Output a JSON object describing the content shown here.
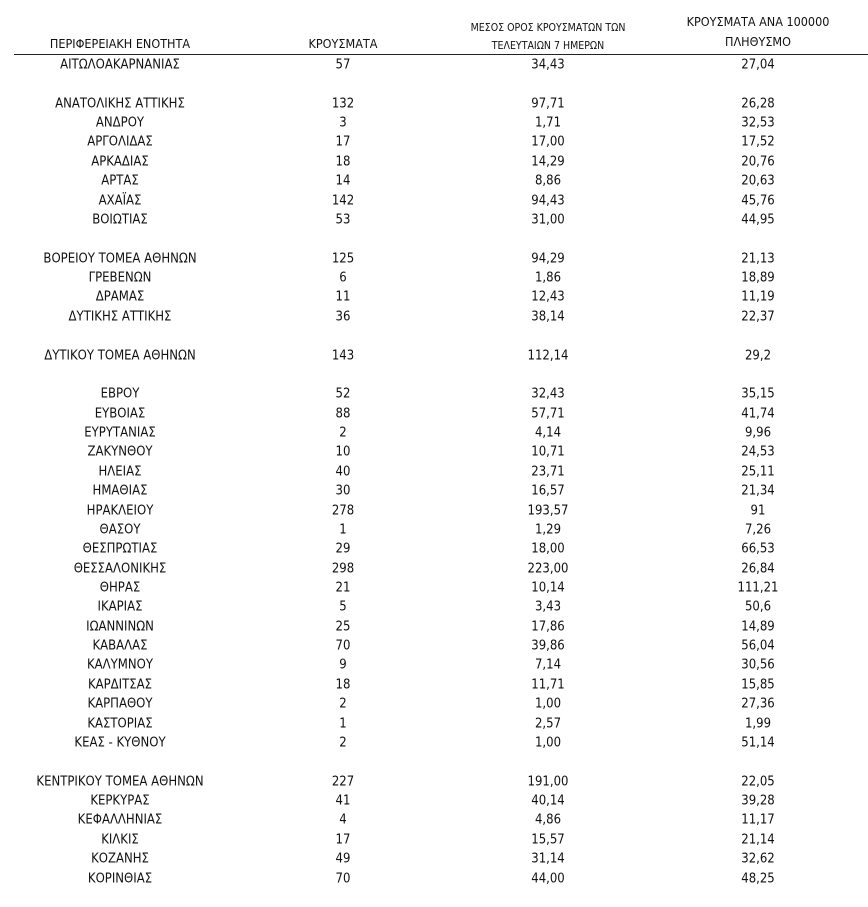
{
  "table": {
    "header": [
      [
        "ΠΕΡΙΦΕΡΕΙΑΚΗ ΕΝΟΤΗΤΑ"
      ],
      [
        "ΚΡΟΥΣΜΑΤΑ"
      ],
      [
        "ΜΕΣΟΣ ΟΡΟΣ ΚΡΟΥΣΜΑΤΩΝ ΤΩΝ",
        "ΤΕΛΕΥΤΑΙΩΝ 7 ΗΜΕΡΩΝ"
      ],
      [
        "ΚΡΟΥΣΜΑΤΑ ΑΝΑ 100000",
        "ΠΛΗΘΥΣΜΟ"
      ]
    ],
    "groups": [
      [
        [
          "ΑΙΤΩΛΟΑΚΑΡΝΑΝΙΑΣ",
          "57",
          "34,43",
          "27,04"
        ]
      ],
      [
        [
          "ΑΝΑΤΟΛΙΚΗΣ ΑΤΤΙΚΗΣ",
          "132",
          "97,71",
          "26,28"
        ],
        [
          "ΑΝΔΡΟΥ",
          "3",
          "1,71",
          "32,53"
        ],
        [
          "ΑΡΓΟΛΙΔΑΣ",
          "17",
          "17,00",
          "17,52"
        ],
        [
          "ΑΡΚΑΔΙΑΣ",
          "18",
          "14,29",
          "20,76"
        ],
        [
          "ΑΡΤΑΣ",
          "14",
          "8,86",
          "20,63"
        ],
        [
          "ΑΧΑΪΑΣ",
          "142",
          "94,43",
          "45,76"
        ],
        [
          "ΒΟΙΩΤΙΑΣ",
          "53",
          "31,00",
          "44,95"
        ]
      ],
      [
        [
          "ΒΟΡΕΙΟΥ ΤΟΜΕΑ ΑΘΗΝΩΝ",
          "125",
          "94,29",
          "21,13"
        ],
        [
          "ΓΡΕΒΕΝΩΝ",
          "6",
          "1,86",
          "18,89"
        ],
        [
          "ΔΡΑΜΑΣ",
          "11",
          "12,43",
          "11,19"
        ],
        [
          "ΔΥΤΙΚΗΣ ΑΤΤΙΚΗΣ",
          "36",
          "38,14",
          "22,37"
        ]
      ],
      [
        [
          "ΔΥΤΙΚΟΥ ΤΟΜΕΑ ΑΘΗΝΩΝ",
          "143",
          "112,14",
          "29,2"
        ]
      ],
      [
        [
          "ΕΒΡΟΥ",
          "52",
          "32,43",
          "35,15"
        ],
        [
          "ΕΥΒΟΙΑΣ",
          "88",
          "57,71",
          "41,74"
        ],
        [
          "ΕΥΡΥΤΑΝΙΑΣ",
          "2",
          "4,14",
          "9,96"
        ],
        [
          "ΖΑΚΥΝΘΟΥ",
          "10",
          "10,71",
          "24,53"
        ],
        [
          "ΗΛΕΙΑΣ",
          "40",
          "23,71",
          "25,11"
        ],
        [
          "ΗΜΑΘΙΑΣ",
          "30",
          "16,57",
          "21,34"
        ],
        [
          "ΗΡΑΚΛΕΙΟΥ",
          "278",
          "193,57",
          "91"
        ],
        [
          "ΘΑΣΟΥ",
          "1",
          "1,29",
          "7,26"
        ],
        [
          "ΘΕΣΠΡΩΤΙΑΣ",
          "29",
          "18,00",
          "66,53"
        ],
        [
          "ΘΕΣΣΑΛΟΝΙΚΗΣ",
          "298",
          "223,00",
          "26,84"
        ],
        [
          "ΘΗΡΑΣ",
          "21",
          "10,14",
          "111,21"
        ],
        [
          "ΙΚΑΡΙΑΣ",
          "5",
          "3,43",
          "50,6"
        ],
        [
          "ΙΩΑΝΝΙΝΩΝ",
          "25",
          "17,86",
          "14,89"
        ],
        [
          "ΚΑΒΑΛΑΣ",
          "70",
          "39,86",
          "56,04"
        ],
        [
          "ΚΑΛΥΜΝΟΥ",
          "9",
          "7,14",
          "30,56"
        ],
        [
          "ΚΑΡΔΙΤΣΑΣ",
          "18",
          "11,71",
          "15,85"
        ],
        [
          "ΚΑΡΠΑΘΟΥ",
          "2",
          "1,00",
          "27,36"
        ],
        [
          "ΚΑΣΤΟΡΙΑΣ",
          "1",
          "2,57",
          "1,99"
        ],
        [
          "ΚΕΑΣ - ΚΥΘΝΟΥ",
          "2",
          "1,00",
          "51,14"
        ]
      ],
      [
        [
          "ΚΕΝΤΡΙΚΟΥ ΤΟΜΕΑ ΑΘΗΝΩΝ",
          "227",
          "191,00",
          "22,05"
        ],
        [
          "ΚΕΡΚΥΡΑΣ",
          "41",
          "40,14",
          "39,28"
        ],
        [
          "ΚΕΦΑΛΛΗΝΙΑΣ",
          "4",
          "4,86",
          "11,17"
        ],
        [
          "ΚΙΛΚΙΣ",
          "17",
          "15,57",
          "21,14"
        ],
        [
          "ΚΟΖΑΝΗΣ",
          "49",
          "31,14",
          "32,62"
        ],
        [
          "ΚΟΡΙΝΘΙΑΣ",
          "70",
          "44,00",
          "48,25"
        ]
      ]
    ]
  }
}
